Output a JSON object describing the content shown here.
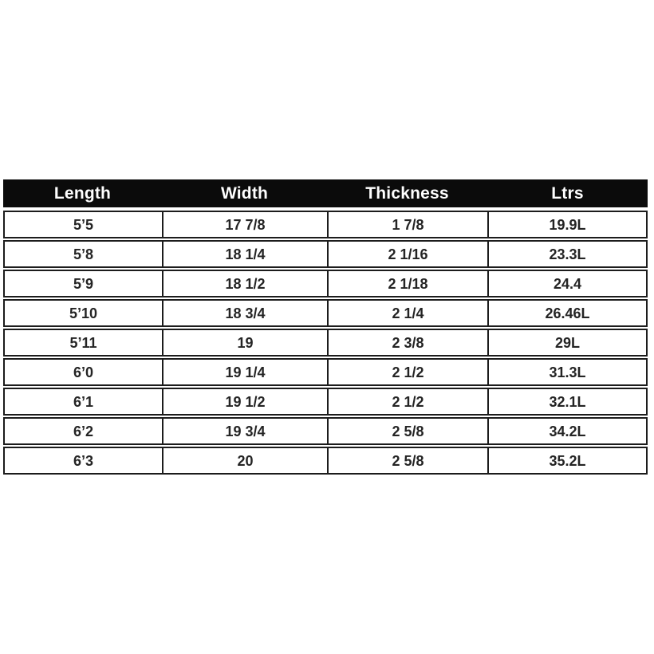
{
  "chart_data": {
    "type": "table",
    "columns": [
      "Length",
      "Width",
      "Thickness",
      "Ltrs"
    ],
    "rows": [
      [
        "5’5",
        "17 7/8",
        "1 7/8",
        "19.9L"
      ],
      [
        "5’8",
        "18 1/4",
        "2 1/16",
        "23.3L"
      ],
      [
        "5’9",
        "18 1/2",
        "2 1/18",
        "24.4"
      ],
      [
        "5’10",
        "18 3/4",
        "2 1/4",
        "26.46L"
      ],
      [
        "5’11",
        "19",
        "2 3/8",
        "29L"
      ],
      [
        "6’0",
        "19 1/4",
        "2 1/2",
        "31.3L"
      ],
      [
        "6’1",
        "19 1/2",
        "2 1/2",
        "32.1L"
      ],
      [
        "6’2",
        "19 3/4",
        "2 5/8",
        "34.2L"
      ],
      [
        "6’3",
        "20",
        "2 5/8",
        "35.2L"
      ]
    ],
    "layout": {
      "grid": "bordered-rows",
      "legend": "none",
      "header_position": "top"
    },
    "colors": {
      "header_bg": "#0b0b0b",
      "header_text": "#ffffff",
      "row_bg": "#ffffff",
      "cell_text": "#242424",
      "border": "#1c1c1c",
      "page_bg": "#ffffff"
    }
  }
}
